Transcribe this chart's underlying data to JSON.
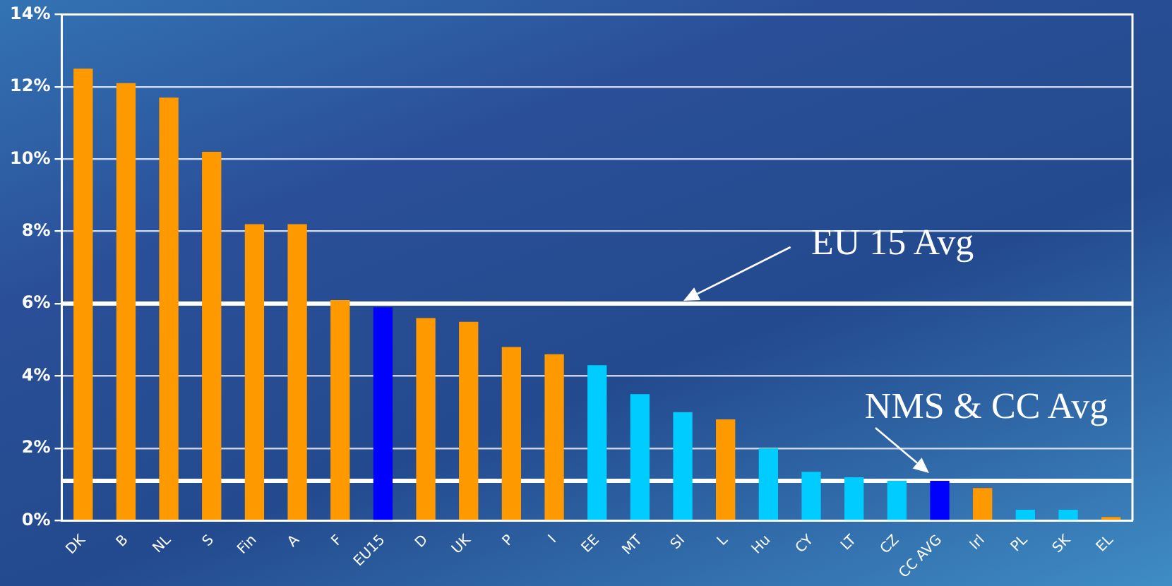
{
  "chart_data": {
    "type": "bar",
    "categories": [
      "DK",
      "B",
      "NL",
      "S",
      "Fin",
      "A",
      "F",
      "EU15",
      "D",
      "UK",
      "P",
      "I",
      "EE",
      "MT",
      "SI",
      "L",
      "Hu",
      "CY",
      "LT",
      "CZ",
      "CC AVG",
      "Irl",
      "PL",
      "SK",
      "EL"
    ],
    "values": [
      12.5,
      12.1,
      11.7,
      10.2,
      8.2,
      8.2,
      6.1,
      5.9,
      5.6,
      5.5,
      4.8,
      4.6,
      4.3,
      3.5,
      3.0,
      2.8,
      2.0,
      1.35,
      1.2,
      1.1,
      1.1,
      0.9,
      0.3,
      0.3,
      0.1
    ],
    "colors": [
      "#ff9900",
      "#ff9900",
      "#ff9900",
      "#ff9900",
      "#ff9900",
      "#ff9900",
      "#ff9900",
      "#0000ff",
      "#ff9900",
      "#ff9900",
      "#ff9900",
      "#ff9900",
      "#00ccff",
      "#00ccff",
      "#00ccff",
      "#ff9900",
      "#00ccff",
      "#00ccff",
      "#00ccff",
      "#00ccff",
      "#0000ff",
      "#ff9900",
      "#00ccff",
      "#00ccff",
      "#ff9900"
    ],
    "ylim": [
      0,
      14
    ],
    "yticks": [
      {
        "value": 0,
        "label": "0%"
      },
      {
        "value": 2,
        "label": "2%"
      },
      {
        "value": 4,
        "label": "4%"
      },
      {
        "value": 6,
        "label": "6%"
      },
      {
        "value": 8,
        "label": "8%"
      },
      {
        "value": 10,
        "label": "10%"
      },
      {
        "value": 12,
        "label": "12%"
      },
      {
        "value": 14,
        "label": "14%"
      }
    ],
    "grid": "y",
    "legend": false,
    "ref_lines": [
      {
        "axis": "y",
        "value": 6.0,
        "label": "EU 15 Avg",
        "color": "#ffffff"
      },
      {
        "axis": "y",
        "value": 1.1,
        "label": "NMS & CC Avg",
        "color": "#ffffff"
      }
    ]
  }
}
